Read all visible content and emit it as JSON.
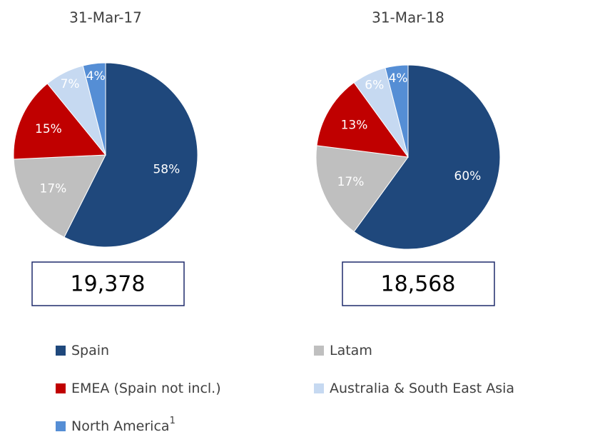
{
  "chart_data": [
    {
      "type": "pie",
      "title": "31-Mar-17",
      "categories": [
        "Spain",
        "Latam",
        "EMEA (Spain not incl.)",
        "Australia & South East Asia",
        "North America"
      ],
      "category_notes": [
        null,
        null,
        null,
        null,
        "1"
      ],
      "values": [
        58,
        17,
        15,
        7,
        4
      ],
      "value_labels": [
        "58%",
        "17%",
        "15%",
        "7%",
        "4%"
      ],
      "colors": [
        "#1f487c",
        "#bfbfbf",
        "#c00000",
        "#c6d9f1",
        "#558ed5"
      ],
      "total": {
        "value": 19378,
        "label": "19,378"
      }
    },
    {
      "type": "pie",
      "title": "31-Mar-18",
      "categories": [
        "Spain",
        "Latam",
        "EMEA (Spain not incl.)",
        "Australia & South East Asia",
        "North America"
      ],
      "values": [
        60,
        17,
        13,
        6,
        4
      ],
      "value_labels": [
        "60%",
        "17%",
        "13%",
        "6%",
        "4%"
      ],
      "colors": [
        "#1f487c",
        "#bfbfbf",
        "#c00000",
        "#c6d9f1",
        "#558ed5"
      ],
      "total": {
        "value": 18568,
        "label": "18,568"
      }
    }
  ]
}
